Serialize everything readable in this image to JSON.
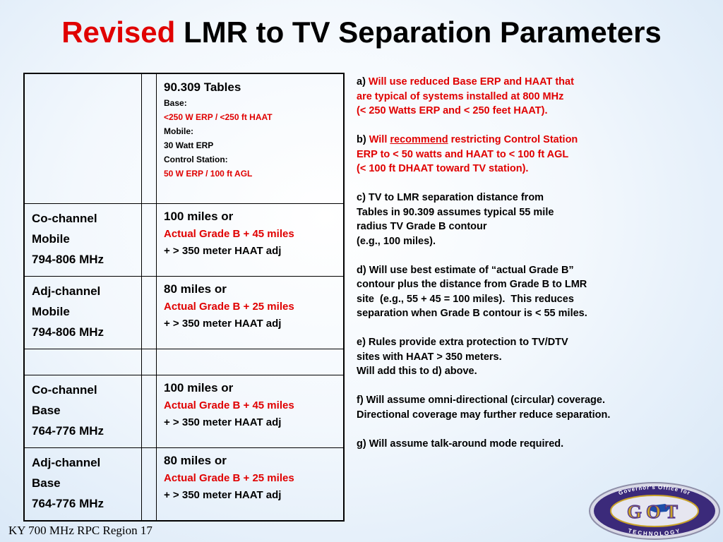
{
  "title": {
    "red": "Revised",
    "rest": "LMR to TV Separation Parameters"
  },
  "table": {
    "header": {
      "title": "90.309 Tables",
      "lines": [
        {
          "text": "Base:",
          "red": false
        },
        {
          "text": "<250 W ERP / <250 ft HAAT",
          "red": true
        },
        {
          "text": "Mobile:",
          "red": false
        },
        {
          "text": "30 Watt ERP",
          "red": false
        },
        {
          "text": "Control Station:",
          "red": false
        },
        {
          "text": "50 W ERP / 100 ft AGL",
          "red": true
        }
      ]
    },
    "rows": [
      {
        "label": [
          "Co-channel",
          "Mobile",
          "794-806 MHz"
        ],
        "main": "100 miles or",
        "red": "Actual Grade B + 45 miles",
        "sub": "+ > 350 meter HAAT adj"
      },
      {
        "label": [
          "Adj-channel",
          "Mobile",
          "794-806 MHz"
        ],
        "main": "80 miles or",
        "red": "Actual Grade B + 25 miles",
        "sub": "+ > 350 meter HAAT adj"
      },
      {
        "label": [
          "Co-channel",
          "Base",
          "764-776 MHz"
        ],
        "main": "100 miles or",
        "red": "Actual Grade B + 45 miles",
        "sub": "+ > 350 meter HAAT adj"
      },
      {
        "label": [
          "Adj-channel",
          "Base",
          "764-776 MHz"
        ],
        "main": "80 miles or",
        "red": "Actual Grade B + 25 miles",
        "sub": "+ > 350 meter HAAT adj"
      }
    ]
  },
  "notes": {
    "a": {
      "prefix": "a) ",
      "lines": [
        "Will use reduced Base ERP and HAAT that",
        "are typical of systems installed at 800 MHz",
        "(< 250 Watts ERP and < 250 feet HAAT)."
      ]
    },
    "b": {
      "prefix": "b) ",
      "will": "Will ",
      "recommend": "recommend",
      "line1_rest": " restricting Control Station",
      "lines": [
        "ERP to < 50 watts and HAAT to < 100 ft AGL",
        "(< 100 ft DHAAT toward TV station)."
      ]
    },
    "c": {
      "lines": [
        "c) TV to LMR separation distance from",
        "Tables in 90.309 assumes typical 55 mile",
        "radius TV Grade B contour",
        "(e.g., 100 miles)."
      ]
    },
    "d": {
      "lines": [
        "d) Will use best estimate of “actual Grade B”",
        "contour plus the distance from Grade B to LMR",
        "site  (e.g., 55 + 45 = 100 miles).  This reduces",
        "separation when Grade B contour is < 55 miles."
      ]
    },
    "e": {
      "lines": [
        "e) Rules provide extra protection to TV/DTV",
        "sites with HAAT > 350 meters.",
        "Will add this to d) above."
      ]
    },
    "f": {
      "lines": [
        "f) Will assume omni-directional (circular) coverage.",
        "Directional coverage may further reduce separation."
      ]
    },
    "g": {
      "lines": [
        "g) Will assume talk-around mode required."
      ]
    }
  },
  "footer": "KY 700 MHz RPC Region 17",
  "logo": {
    "top_text": "Governor's Office for",
    "main_text": "GOT",
    "bottom_text": "TECHNOLOGY",
    "colors": {
      "ring": "#3b2a7a",
      "gold": "#c9a227",
      "blue": "#1d4fa8",
      "purple": "#4a2f8f"
    }
  },
  "colors": {
    "accent_red": "#e00000",
    "text": "#000000"
  }
}
